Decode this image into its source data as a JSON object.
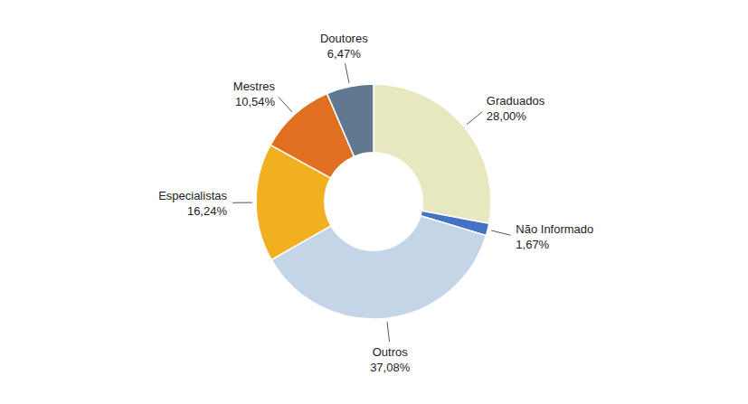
{
  "chart_data": {
    "type": "donut",
    "categories": [
      "Graduados",
      "Não Informado",
      "Outros",
      "Especialistas",
      "Mestres",
      "Doutores"
    ],
    "values": [
      28.0,
      1.67,
      37.08,
      16.24,
      10.54,
      6.47
    ],
    "value_labels": [
      "28,00%",
      "1,67%",
      "37,08%",
      "16,24%",
      "10,54%",
      "6,47%"
    ],
    "colors": [
      "#E8E8C0",
      "#4472C4",
      "#C5D5E8",
      "#F0B020",
      "#E07020",
      "#607890"
    ],
    "data_labels": true
  }
}
